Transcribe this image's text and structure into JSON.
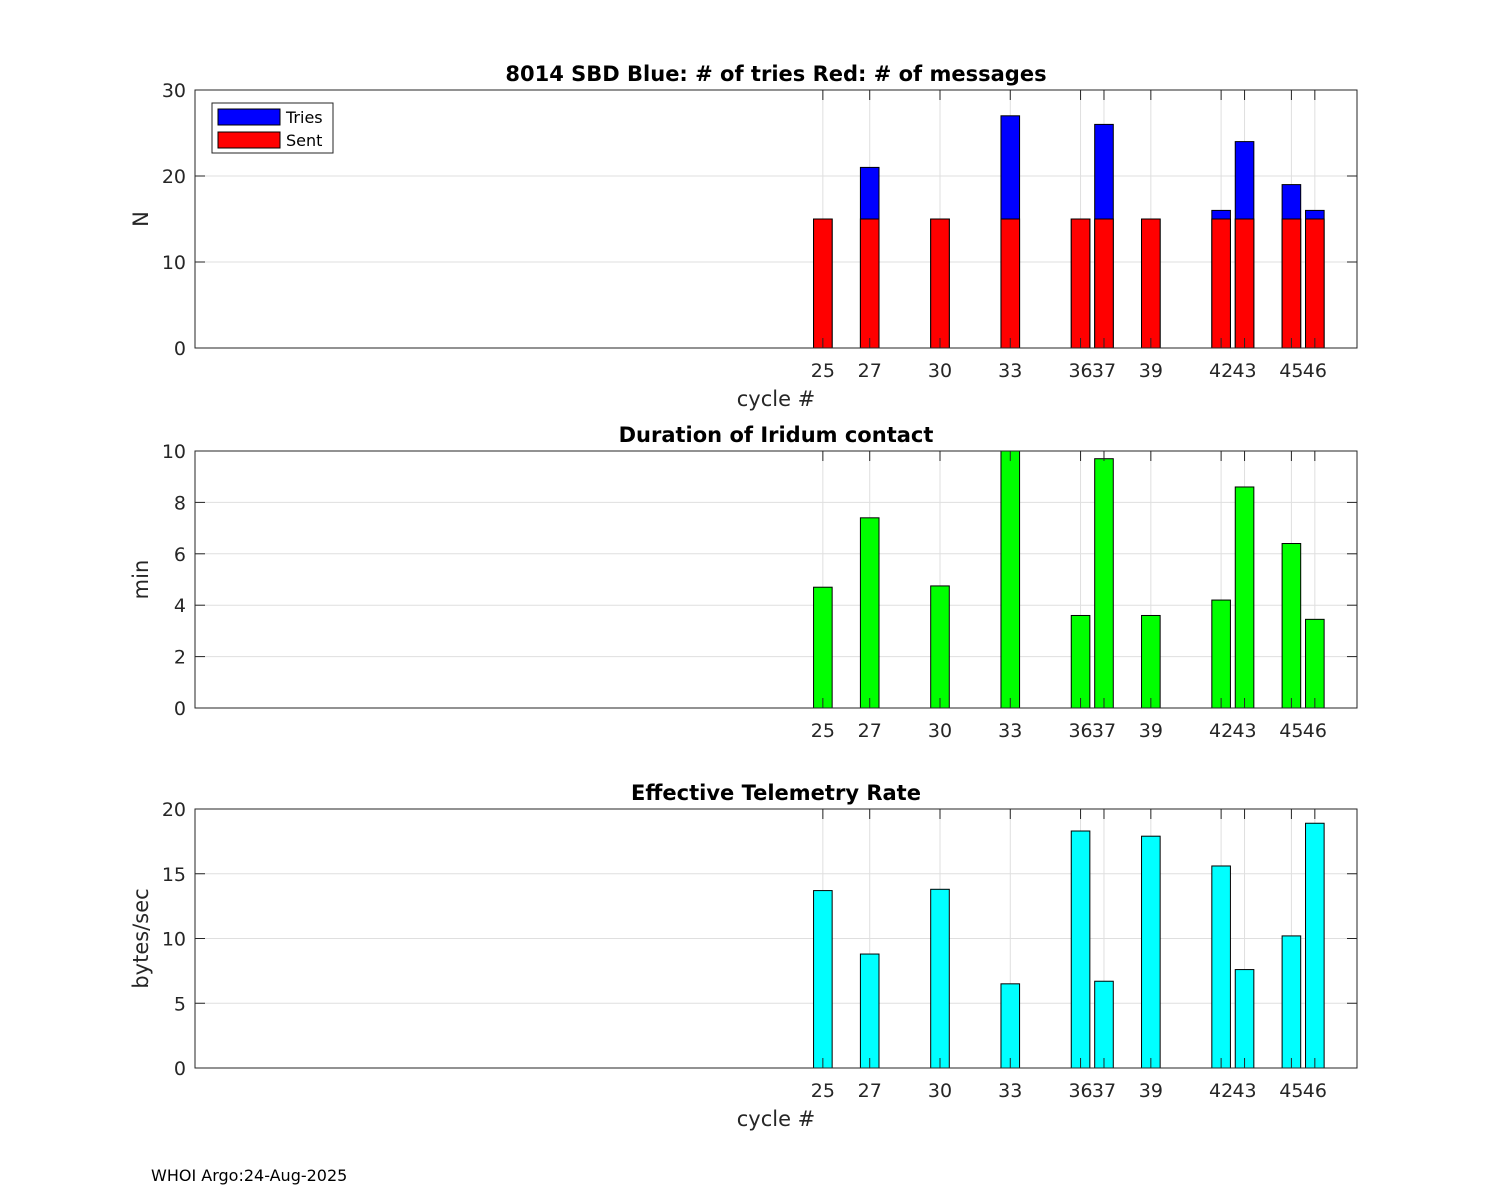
{
  "footer": "WHOI Argo:24-Aug-2025",
  "chart_data": [
    {
      "type": "bar",
      "title": "8014 SBD  Blue: # of tries   Red: # of messages",
      "xlabel": "cycle #",
      "ylabel": "N",
      "xlim": [
        -1.8,
        47.8
      ],
      "ylim": [
        0,
        30
      ],
      "yticks": [
        0,
        10,
        20,
        30
      ],
      "categories": [
        25,
        27,
        30,
        33,
        36,
        37,
        39,
        42,
        43,
        45,
        46
      ],
      "series": [
        {
          "name": "Tries",
          "color": "#0000ff",
          "values": [
            15,
            21,
            15,
            27,
            15,
            26,
            15,
            16,
            24,
            19,
            16
          ]
        },
        {
          "name": "Sent",
          "color": "#ff0000",
          "values": [
            15,
            15,
            15,
            15,
            15,
            15,
            15,
            15,
            15,
            15,
            15
          ]
        }
      ],
      "legend": {
        "position": "top-left",
        "entries": [
          "Tries",
          "Sent"
        ]
      },
      "grid": true
    },
    {
      "type": "bar",
      "title": "Duration of Iridum contact",
      "xlabel": "",
      "ylabel": "min",
      "xlim": [
        -1.8,
        47.8
      ],
      "ylim": [
        0,
        10
      ],
      "yticks": [
        0,
        2,
        4,
        6,
        8,
        10
      ],
      "categories": [
        25,
        27,
        30,
        33,
        36,
        37,
        39,
        42,
        43,
        45,
        46
      ],
      "series": [
        {
          "name": "Duration",
          "color": "#00ff00",
          "values": [
            4.7,
            7.4,
            4.75,
            10.0,
            3.6,
            9.7,
            3.6,
            4.2,
            8.6,
            6.4,
            3.45
          ]
        }
      ],
      "grid": true
    },
    {
      "type": "bar",
      "title": "Effective Telemetry Rate",
      "xlabel": "cycle #",
      "ylabel": "bytes/sec",
      "xlim": [
        -1.8,
        47.8
      ],
      "ylim": [
        0,
        20
      ],
      "yticks": [
        0,
        5,
        10,
        15,
        20
      ],
      "categories": [
        25,
        27,
        30,
        33,
        36,
        37,
        39,
        42,
        43,
        45,
        46
      ],
      "series": [
        {
          "name": "Rate",
          "color": "#00ffff",
          "values": [
            13.7,
            8.8,
            13.8,
            6.5,
            18.3,
            6.7,
            17.9,
            15.6,
            7.6,
            10.2,
            18.9
          ]
        }
      ],
      "grid": true
    }
  ]
}
